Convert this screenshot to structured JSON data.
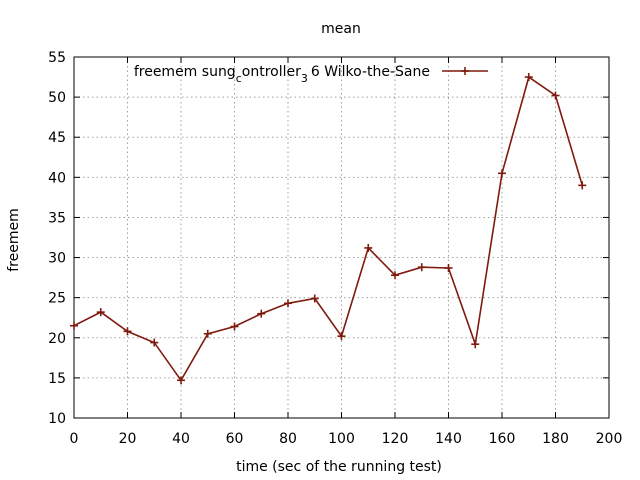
{
  "chart_data": {
    "type": "line",
    "title": "mean",
    "xlabel": "time (sec of the running test)",
    "ylabel": "freemem",
    "xlim": [
      0,
      200
    ],
    "ylim": [
      10,
      55
    ],
    "xticks": [
      0,
      20,
      40,
      60,
      80,
      100,
      120,
      140,
      160,
      180,
      200
    ],
    "yticks": [
      10,
      15,
      20,
      25,
      30,
      35,
      40,
      45,
      50,
      55
    ],
    "grid": true,
    "legend_position": "top-right",
    "series": [
      {
        "name": "freemem sung_controller_3 6 Wilko-the-Sane",
        "color": "#7f1a0e",
        "marker": "plus",
        "x": [
          0,
          10,
          20,
          30,
          40,
          50,
          60,
          70,
          80,
          90,
          100,
          110,
          120,
          130,
          140,
          150,
          160,
          170,
          180,
          190
        ],
        "y": [
          21.5,
          23.2,
          20.8,
          19.4,
          14.7,
          20.5,
          21.4,
          23.0,
          24.3,
          24.9,
          20.2,
          31.2,
          27.8,
          28.8,
          28.7,
          19.2,
          40.5,
          52.5,
          50.2,
          39.0
        ]
      }
    ]
  },
  "legend": {
    "part1": "freemem sung",
    "sub1": "c",
    "part2": "ontroller",
    "sub2": "3",
    "part3": "6 Wilko-the-Sane"
  }
}
